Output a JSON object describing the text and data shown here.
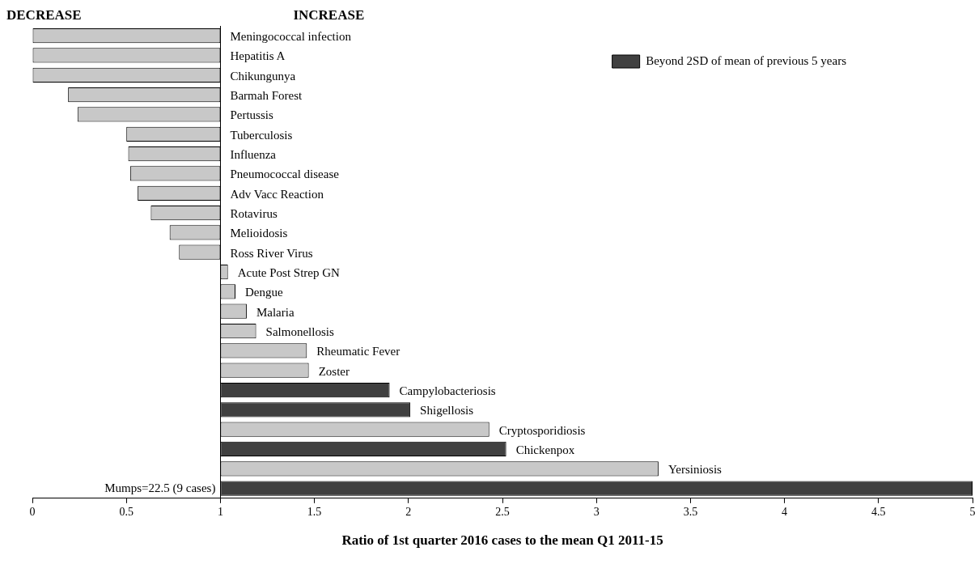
{
  "chart_data": {
    "type": "bar",
    "orientation": "horizontal",
    "xlabel": "Ratio of 1st quarter 2016 cases to the mean Q1 2011-15",
    "categories": [
      "Meningococcal infection",
      "Hepatitis A",
      "Chikungunya",
      "Barmah Forest",
      "Pertussis",
      "Tuberculosis",
      "Influenza",
      "Pneumococcal disease",
      "Adv Vacc Reaction",
      "Rotavirus",
      "Melioidosis",
      "Ross River Virus",
      "Acute Post Strep GN",
      "Dengue",
      "Malaria",
      "Salmonellosis",
      "Rheumatic Fever",
      "Zoster",
      "Campylobacteriosis",
      "Shigellosis",
      "Cryptosporidiosis",
      "Chickenpox",
      "Yersiniosis",
      null
    ],
    "series": [
      {
        "name": "Beyond 2SD of mean of previous 5 years",
        "color": "#404040",
        "base": [
          null,
          null,
          null,
          null,
          null,
          null,
          null,
          null,
          null,
          null,
          null,
          null,
          null,
          null,
          null,
          null,
          null,
          null,
          1,
          1,
          null,
          1,
          null,
          1
        ],
        "values": [
          null,
          null,
          null,
          null,
          null,
          null,
          null,
          null,
          null,
          null,
          null,
          null,
          null,
          null,
          null,
          null,
          null,
          null,
          0.9,
          1.01,
          null,
          1.52,
          null,
          4
        ]
      },
      {
        "color": "#c8c8c8",
        "base": [
          1,
          1,
          1,
          1,
          1,
          1,
          1,
          1,
          1,
          1,
          1,
          1,
          1,
          1,
          1,
          1,
          1,
          1,
          null,
          null,
          1,
          null,
          1,
          null
        ],
        "values": [
          -1,
          -1,
          -1,
          -0.81,
          -0.76,
          -0.5,
          -0.49,
          -0.48,
          -0.44,
          -0.37,
          -0.27,
          -0.22,
          0.04,
          0.08,
          0.14,
          0.19,
          0.46,
          0.47,
          null,
          null,
          1.43,
          null,
          2.33,
          null
        ]
      }
    ],
    "xlim": [
      0,
      5
    ],
    "xticks": [
      0,
      0.5,
      1,
      1.5,
      2,
      2.5,
      3,
      3.5,
      4,
      4.5,
      5
    ],
    "annotations": [
      "DECREASE",
      "INCREASE",
      "Mumps=22.5 (9 cases)"
    ],
    "legend": "top right",
    "grid": false
  }
}
